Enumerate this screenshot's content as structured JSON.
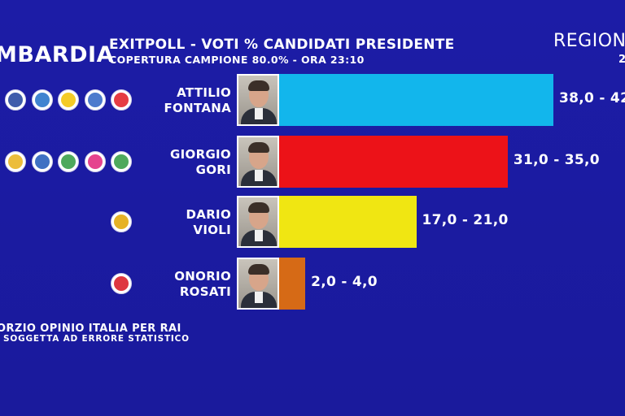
{
  "header": {
    "region": "MBARDIA",
    "title": "EXITPOLL - VOTI % CANDIDATI PRESIDENTE",
    "subtitle": "COPERTURA CAMPIONE 80.0% - ORA 23:10",
    "election_type": "REGION",
    "election_year": "2"
  },
  "footer": {
    "source": "ORZIO OPINIO ITALIA PER RAI",
    "disclaimer": "SOGGETTA AD ERRORE STATISTICO"
  },
  "colors": {
    "background": "#1a1a9e",
    "fontana": "#12b6ec",
    "gori": "#ec1218",
    "violi": "#f0e612",
    "rosati": "#d66a16"
  },
  "candidates": [
    {
      "first": "ATTILIO",
      "last": "FONTANA",
      "photo_icon": "candidate-portrait-icon",
      "range_label": "38,0 - 42",
      "logos": [
        {
          "icon": "party-logo-icon",
          "color": "#2a5bbf"
        },
        {
          "icon": "party-logo-icon",
          "color": "#1e7f3a"
        },
        {
          "icon": "party-logo-icon",
          "color": "#1d3f9c"
        },
        {
          "icon": "party-logo-icon",
          "color": "#1e6fc8"
        },
        {
          "icon": "party-logo-icon",
          "color": "#f2c200"
        },
        {
          "icon": "party-logo-icon",
          "color": "#2d63c4"
        },
        {
          "icon": "party-logo-icon",
          "color": "#e01a22"
        }
      ]
    },
    {
      "first": "GIORGIO",
      "last": "GORI",
      "photo_icon": "candidate-portrait-icon",
      "range_label": "31,0 - 35,0",
      "logos": [
        {
          "icon": "party-logo-icon",
          "color": "#2f9a3f"
        },
        {
          "icon": "party-logo-icon",
          "color": "#e9b21a"
        },
        {
          "icon": "party-logo-icon",
          "color": "#1d58b8"
        },
        {
          "icon": "party-logo-icon",
          "color": "#2f9a3f"
        },
        {
          "icon": "party-logo-icon",
          "color": "#e0227a"
        },
        {
          "icon": "party-logo-icon",
          "color": "#2f9a3f"
        }
      ]
    },
    {
      "first": "DARIO",
      "last": "VIOLI",
      "photo_icon": "candidate-portrait-icon",
      "range_label": "17,0 - 21,0",
      "logos": [
        {
          "icon": "party-logo-icon",
          "color": "#e2a400"
        }
      ]
    },
    {
      "first": "ONORIO",
      "last": "ROSATI",
      "photo_icon": "candidate-portrait-icon",
      "range_label": "2,0 - 4,0",
      "logos": [
        {
          "icon": "party-logo-icon",
          "color": "#d8141e"
        }
      ]
    }
  ],
  "chart_data": {
    "type": "bar",
    "orientation": "horizontal",
    "title": "EXITPOLL - VOTI % CANDIDATI PRESIDENTE",
    "subtitle": "COPERTURA CAMPIONE 80.0% - ORA 23:10",
    "categories": [
      "ATTILIO FONTANA",
      "GIORGIO GORI",
      "DARIO VIOLI",
      "ONORIO ROSATI"
    ],
    "series": [
      {
        "low": [
          38.0,
          31.0,
          17.0,
          2.0
        ],
        "high": [
          42.0,
          35.0,
          21.0,
          4.0
        ]
      }
    ],
    "bar_value": [
      42.0,
      35.0,
      21.0,
      4.0
    ],
    "xlim": [
      0,
      42
    ],
    "grid": false,
    "legend": "none"
  }
}
